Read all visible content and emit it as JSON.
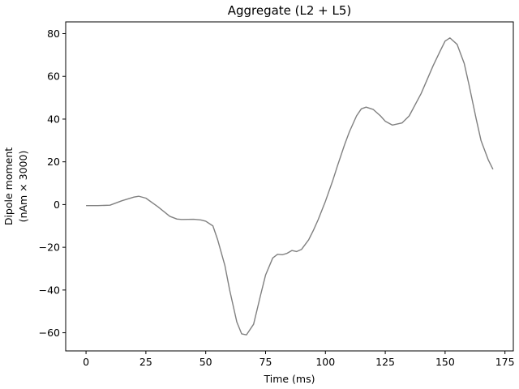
{
  "chart_data": {
    "type": "line",
    "title": "Aggregate (L2 + L5)",
    "xlabel": "Time (ms)",
    "ylabel": [
      "Dipole moment",
      "(nAm × 3000)"
    ],
    "xlim": [
      -8.5,
      178.5
    ],
    "ylim": [
      -68.5,
      85.5
    ],
    "xticks": [
      0,
      25,
      50,
      75,
      100,
      125,
      150,
      175
    ],
    "yticks": [
      -60,
      -40,
      -20,
      0,
      20,
      40,
      60,
      80
    ],
    "grid": false,
    "series": [
      {
        "color": "#808080",
        "x": [
          0,
          5,
          10,
          15,
          20,
          22,
          25,
          30,
          35,
          38,
          40,
          45,
          48,
          50,
          53,
          55,
          58,
          60,
          63,
          65,
          67,
          70,
          73,
          75,
          78,
          80,
          82,
          84,
          86,
          88,
          90,
          93,
          95,
          97,
          100,
          103,
          105,
          108,
          110,
          113,
          115,
          117,
          120,
          123,
          125,
          128,
          132,
          135,
          140,
          145,
          148,
          150,
          152,
          155,
          158,
          160,
          163,
          165,
          168,
          170
        ],
        "y": [
          -0.5,
          -0.5,
          -0.3,
          1.8,
          3.5,
          3.9,
          3.0,
          -1.0,
          -5.5,
          -6.8,
          -7.0,
          -6.9,
          -7.2,
          -7.8,
          -10.0,
          -16.5,
          -28.5,
          -40.0,
          -55.0,
          -60.5,
          -61.0,
          -56.0,
          -42.0,
          -33.0,
          -25.0,
          -23.3,
          -23.5,
          -22.8,
          -21.5,
          -22.0,
          -21.0,
          -16.5,
          -12.0,
          -7.0,
          1.5,
          11.0,
          18.0,
          28.0,
          34.0,
          41.5,
          44.8,
          45.6,
          44.5,
          41.5,
          39.0,
          37.2,
          38.2,
          41.5,
          52.0,
          65.0,
          72.0,
          76.5,
          78.0,
          75.0,
          66.0,
          56.0,
          40.0,
          30.0,
          21.0,
          16.5
        ]
      }
    ]
  }
}
